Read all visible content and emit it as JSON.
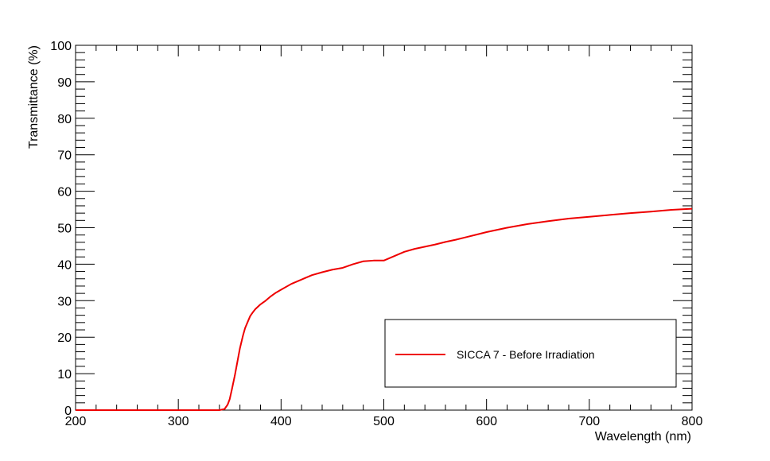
{
  "chart_data": {
    "type": "line",
    "title": "",
    "xlabel": "Wavelength (nm)",
    "ylabel": "Transmittance (%)",
    "xlim": [
      200,
      800
    ],
    "ylim": [
      0,
      100
    ],
    "x_ticks": [
      200,
      300,
      400,
      500,
      600,
      700,
      800
    ],
    "y_ticks": [
      0,
      10,
      20,
      30,
      40,
      50,
      60,
      70,
      80,
      90,
      100
    ],
    "grid": false,
    "legend_position": "bottom-right",
    "series": [
      {
        "name": "SICCA 7 - Before Irradiation",
        "color": "#ee0000",
        "x": [
          200,
          250,
          300,
          340,
          345,
          348,
          350,
          352,
          355,
          358,
          360,
          363,
          365,
          368,
          370,
          373,
          375,
          380,
          385,
          390,
          395,
          400,
          410,
          420,
          430,
          440,
          450,
          460,
          470,
          480,
          490,
          500,
          505,
          510,
          520,
          530,
          540,
          550,
          560,
          570,
          580,
          590,
          600,
          620,
          640,
          660,
          680,
          700,
          720,
          740,
          760,
          780,
          800
        ],
        "y": [
          0,
          0,
          0,
          0,
          0.3,
          1.5,
          3,
          5.5,
          9.5,
          14,
          17,
          20.5,
          22.5,
          24.5,
          25.8,
          27,
          27.7,
          29,
          30,
          31.2,
          32.2,
          33,
          34.6,
          35.8,
          37,
          37.8,
          38.5,
          39,
          40,
          40.8,
          41,
          41,
          41.6,
          42.2,
          43.4,
          44.2,
          44.8,
          45.4,
          46.1,
          46.7,
          47.4,
          48.1,
          48.8,
          50,
          51,
          51.8,
          52.5,
          53,
          53.5,
          54,
          54.4,
          54.9,
          55.2
        ]
      }
    ]
  }
}
